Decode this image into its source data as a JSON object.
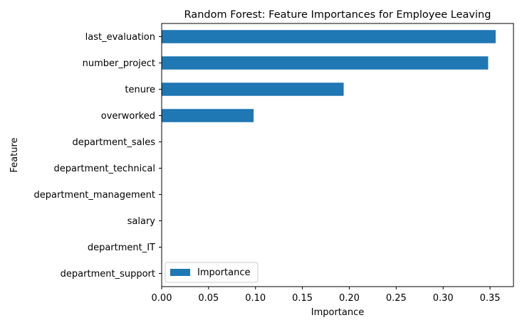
{
  "chart_data": {
    "type": "bar",
    "orientation": "horizontal",
    "title": "Random Forest: Feature Importances for Employee Leaving",
    "xlabel": "Importance",
    "ylabel": "Feature",
    "categories": [
      "last_evaluation",
      "number_project",
      "tenure",
      "overworked",
      "department_sales",
      "department_technical",
      "department_management",
      "salary",
      "department_IT",
      "department_support"
    ],
    "series": [
      {
        "name": "Importance",
        "values": [
          0.356,
          0.348,
          0.194,
          0.098,
          0.0,
          0.0,
          0.0,
          0.0,
          0.0,
          0.0
        ],
        "color": "#1f77b4"
      }
    ],
    "xlim": [
      0.0,
      0.375
    ],
    "xticks": [
      "0.00",
      "0.05",
      "0.10",
      "0.15",
      "0.20",
      "0.25",
      "0.30",
      "0.35"
    ],
    "grid": false,
    "legend_position": "lower-left"
  }
}
